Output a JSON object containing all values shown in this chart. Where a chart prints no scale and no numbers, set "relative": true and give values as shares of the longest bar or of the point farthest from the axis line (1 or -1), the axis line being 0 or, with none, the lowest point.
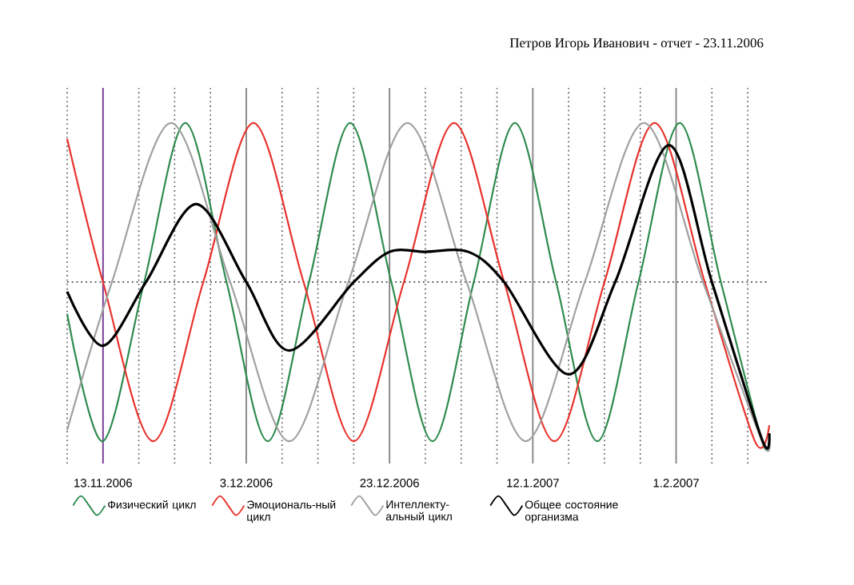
{
  "chart_data": {
    "type": "line",
    "title": "Петров Игорь Иванович - отчет - 23.11.2006",
    "relative": true,
    "xlim": [
      "2006-11-08",
      "2007-02-14"
    ],
    "xticks": [
      {
        "value": "2006-11-08",
        "label": null
      },
      {
        "value": "2006-11-13",
        "label": "13.11.2006"
      },
      {
        "value": "2006-11-18",
        "label": null
      },
      {
        "value": "2006-11-23",
        "label": null
      },
      {
        "value": "2006-11-28",
        "label": null
      },
      {
        "value": "2006-12-03",
        "label": "3.12.2006"
      },
      {
        "value": "2006-12-08",
        "label": null
      },
      {
        "value": "2006-12-13",
        "label": null
      },
      {
        "value": "2006-12-18",
        "label": null
      },
      {
        "value": "2006-12-23",
        "label": "23.12.2006"
      },
      {
        "value": "2006-12-28",
        "label": null
      },
      {
        "value": "2007-01-02",
        "label": null
      },
      {
        "value": "2007-01-07",
        "label": null
      },
      {
        "value": "2007-01-12",
        "label": "12.1.2007"
      },
      {
        "value": "2007-01-17",
        "label": null
      },
      {
        "value": "2007-01-22",
        "label": null
      },
      {
        "value": "2007-01-27",
        "label": null
      },
      {
        "value": "2007-02-01",
        "label": "1.2.2007"
      },
      {
        "value": "2007-02-06",
        "label": null
      },
      {
        "value": "2007-02-11",
        "label": null
      }
    ],
    "grid": "x",
    "legend": "bottom",
    "ref_lines": [
      {
        "axis": "y",
        "value": 0,
        "line_style": "dotted",
        "color": "#404040"
      },
      {
        "axis": "x",
        "value": "2006-11-13",
        "color": "#8040a0"
      }
    ],
    "series": [
      {
        "name": "Физический цикл",
        "color": "#2e8b4e",
        "x": [
          "2006-11-08",
          "2006-11-13",
          "2006-11-18T18:00",
          "2006-11-24T12:00",
          "2006-11-30T06:00",
          "2006-12-06",
          "2006-12-11T18:00",
          "2006-12-17T12:00",
          "2006-12-23T06:00",
          "2006-12-29",
          "2007-01-03T18:00",
          "2007-01-09T12:00",
          "2007-01-15T06:00",
          "2007-01-21",
          "2007-01-26T18:00",
          "2007-02-01T12:00",
          "2007-02-07T06:00",
          "2007-02-13",
          "2007-02-14"
        ],
        "values": [
          -0.2,
          -1,
          0,
          1,
          0,
          -1,
          0,
          1,
          0,
          -1,
          0,
          1,
          0,
          -1,
          0,
          1,
          0,
          -1,
          -0.96
        ]
      },
      {
        "name": "Эмоциональ-ный цикл",
        "color": "#e8322c",
        "x": [
          "2006-11-08",
          "2006-11-13",
          "2006-11-20",
          "2006-11-27",
          "2006-12-04",
          "2006-12-11",
          "2006-12-18",
          "2006-12-25",
          "2007-01-01",
          "2007-01-08",
          "2007-01-15",
          "2007-01-22",
          "2007-01-29",
          "2007-02-05",
          "2007-02-12",
          "2007-02-14"
        ],
        "values": [
          0.9,
          0,
          -1,
          0,
          1,
          0,
          -1,
          0,
          1,
          0,
          -1,
          0,
          1,
          0,
          -1,
          -0.9
        ]
      },
      {
        "name": "Интеллекту-альный цикл",
        "color": "#a0a0a0",
        "x": [
          "2006-11-08",
          "2006-11-14T06:00",
          "2006-11-22T12:00",
          "2006-11-30T18:00",
          "2006-12-09",
          "2006-12-17T06:00",
          "2006-12-25T12:00",
          "2007-01-02T18:00",
          "2007-01-11",
          "2007-01-19T06:00",
          "2007-01-27T12:00",
          "2007-02-04T18:00",
          "2007-02-13",
          "2007-02-14"
        ],
        "values": [
          -0.93,
          0,
          1,
          0,
          -1,
          0,
          1,
          0,
          -1,
          0,
          1,
          0,
          -1,
          -0.98
        ]
      },
      {
        "name": "Общее состояние организма",
        "color": "#000000",
        "x": [
          "2006-11-08",
          "2006-11-13",
          "2006-11-19",
          "2006-11-26",
          "2006-12-03",
          "2006-12-09",
          "2006-12-18",
          "2006-12-23",
          "2006-12-28",
          "2007-01-03",
          "2007-01-08",
          "2007-01-17",
          "2007-01-23T12:00",
          "2007-01-31",
          "2007-02-06",
          "2007-02-13",
          "2007-02-14"
        ],
        "values": [
          -0.06,
          -0.4,
          0,
          0.49,
          0,
          -0.43,
          0,
          0.19,
          0.19,
          0.19,
          0,
          -0.58,
          0,
          0.86,
          0,
          -0.99,
          -0.95
        ]
      }
    ]
  }
}
